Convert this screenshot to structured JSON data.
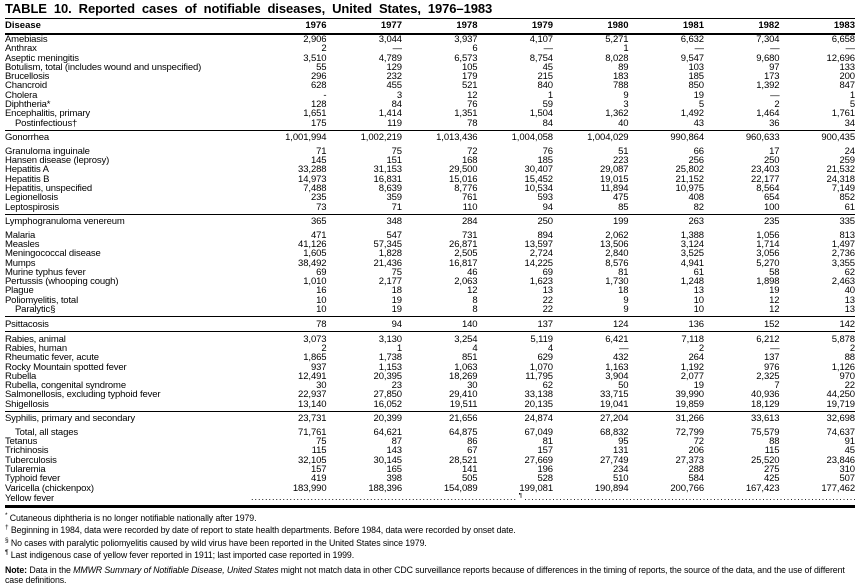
{
  "title": "TABLE 10. Reported cases of notifiable diseases, United States, 1976–1983",
  "columns": [
    "Disease",
    "1976",
    "1977",
    "1978",
    "1979",
    "1980",
    "1981",
    "1982",
    "1983"
  ],
  "leader": {
    "dot": ".",
    "mark": "¶"
  },
  "groups": [
    [
      {
        "label": "Amebiasis",
        "values": [
          "2,906",
          "3,044",
          "3,937",
          "4,107",
          "5,271",
          "6,632",
          "7,304",
          "6,658"
        ]
      },
      {
        "label": "Anthrax",
        "values": [
          "2",
          "—",
          "6",
          "—",
          "1",
          "—",
          "—",
          "—"
        ]
      },
      {
        "label": "Aseptic meningitis",
        "values": [
          "3,510",
          "4,789",
          "6,573",
          "8,754",
          "8,028",
          "9,547",
          "9,680",
          "12,696"
        ]
      },
      {
        "label": "Botulism, total (includes wound and unspecified)",
        "values": [
          "55",
          "129",
          "105",
          "45",
          "89",
          "103",
          "97",
          "133"
        ]
      },
      {
        "label": "Brucellosis",
        "values": [
          "296",
          "232",
          "179",
          "215",
          "183",
          "185",
          "173",
          "200"
        ]
      },
      {
        "label": "Chancroid",
        "values": [
          "628",
          "455",
          "521",
          "840",
          "788",
          "850",
          "1,392",
          "847"
        ]
      },
      {
        "label": "Cholera",
        "values": [
          "-",
          "3",
          "12",
          "1",
          "9",
          "19",
          "—",
          "1"
        ]
      },
      {
        "label": "Diphtheria*",
        "values": [
          "128",
          "84",
          "76",
          "59",
          "3",
          "5",
          "2",
          "5"
        ]
      },
      {
        "label": "Encephalitis, primary",
        "values": [
          "1,651",
          "1,414",
          "1,351",
          "1,504",
          "1,362",
          "1,492",
          "1,464",
          "1,761"
        ]
      },
      {
        "label": "Postinfectious†",
        "indent": true,
        "values": [
          "175",
          "119",
          "78",
          "84",
          "40",
          "43",
          "36",
          "34"
        ]
      }
    ],
    [
      {
        "label": "Gonorrhea",
        "gap_after": true,
        "values": [
          "1,001,994",
          "1,002,219",
          "1,013,436",
          "1,004,058",
          "1,004,029",
          "990,864",
          "960,633",
          "900,435"
        ]
      },
      {
        "label": "Granuloma inguinale",
        "values": [
          "71",
          "75",
          "72",
          "76",
          "51",
          "66",
          "17",
          "24"
        ]
      },
      {
        "label": "Hansen disease (leprosy)",
        "values": [
          "145",
          "151",
          "168",
          "185",
          "223",
          "256",
          "250",
          "259"
        ]
      },
      {
        "label": "Hepatitis A",
        "values": [
          "33,288",
          "31,153",
          "29,500",
          "30,407",
          "29,087",
          "25,802",
          "23,403",
          "21,532"
        ]
      },
      {
        "label": "Hepatitis B",
        "values": [
          "14,973",
          "16,831",
          "15,016",
          "15,452",
          "19,015",
          "21,152",
          "22,177",
          "24,318"
        ]
      },
      {
        "label": "Hepatitis, unspecified",
        "values": [
          "7,488",
          "8,639",
          "8,776",
          "10,534",
          "11,894",
          "10,975",
          "8,564",
          "7,149"
        ]
      },
      {
        "label": "Legionellosis",
        "values": [
          "235",
          "359",
          "761",
          "593",
          "475",
          "408",
          "654",
          "852"
        ]
      },
      {
        "label": "Leptospirosis",
        "values": [
          "73",
          "71",
          "110",
          "94",
          "85",
          "82",
          "100",
          "61"
        ]
      }
    ],
    [
      {
        "label": "Lymphogranuloma venereum",
        "gap_after": true,
        "values": [
          "365",
          "348",
          "284",
          "250",
          "199",
          "263",
          "235",
          "335"
        ]
      },
      {
        "label": "Malaria",
        "values": [
          "471",
          "547",
          "731",
          "894",
          "2,062",
          "1,388",
          "1,056",
          "813"
        ]
      },
      {
        "label": "Measles",
        "values": [
          "41,126",
          "57,345",
          "26,871",
          "13,597",
          "13,506",
          "3,124",
          "1,714",
          "1,497"
        ]
      },
      {
        "label": "Meningococcal disease",
        "values": [
          "1,605",
          "1,828",
          "2,505",
          "2,724",
          "2,840",
          "3,525",
          "3,056",
          "2,736"
        ]
      },
      {
        "label": "Mumps",
        "values": [
          "38,492",
          "21,436",
          "16,817",
          "14,225",
          "8,576",
          "4,941",
          "5,270",
          "3,355"
        ]
      },
      {
        "label": "Murine typhus fever",
        "values": [
          "69",
          "75",
          "46",
          "69",
          "81",
          "61",
          "58",
          "62"
        ]
      },
      {
        "label": "Pertussis (whooping cough)",
        "values": [
          "1,010",
          "2,177",
          "2,063",
          "1,623",
          "1,730",
          "1,248",
          "1,898",
          "2,463"
        ]
      },
      {
        "label": "Plague",
        "values": [
          "16",
          "18",
          "12",
          "13",
          "18",
          "13",
          "19",
          "40"
        ]
      },
      {
        "label": "Poliomyelitis, total",
        "values": [
          "10",
          "19",
          "8",
          "22",
          "9",
          "10",
          "12",
          "13"
        ]
      },
      {
        "label": "Paralytic§",
        "indent": true,
        "values": [
          "10",
          "19",
          "8",
          "22",
          "9",
          "10",
          "12",
          "13"
        ]
      }
    ],
    [
      {
        "label": "Psittacosis",
        "values": [
          "78",
          "94",
          "140",
          "137",
          "124",
          "136",
          "152",
          "142"
        ]
      }
    ],
    [
      {
        "label": "Rabies, animal",
        "values": [
          "3,073",
          "3,130",
          "3,254",
          "5,119",
          "6,421",
          "7,118",
          "6,212",
          "5,878"
        ]
      },
      {
        "label": "Rabies, human",
        "values": [
          "2",
          "1",
          "4",
          "4",
          "—",
          "2",
          "—",
          "2"
        ]
      },
      {
        "label": "Rheumatic fever, acute",
        "values": [
          "1,865",
          "1,738",
          "851",
          "629",
          "432",
          "264",
          "137",
          "88"
        ]
      },
      {
        "label": "Rocky Mountain spotted fever",
        "values": [
          "937",
          "1,153",
          "1,063",
          "1,070",
          "1,163",
          "1,192",
          "976",
          "1,126"
        ]
      },
      {
        "label": "Rubella",
        "values": [
          "12,491",
          "20,395",
          "18,269",
          "11,795",
          "3,904",
          "2,077",
          "2,325",
          "970"
        ]
      },
      {
        "label": "Rubella, congenital syndrome",
        "values": [
          "30",
          "23",
          "30",
          "62",
          "50",
          "19",
          "7",
          "22"
        ]
      },
      {
        "label": "Salmonellosis, excluding typhoid fever",
        "values": [
          "22,937",
          "27,850",
          "29,410",
          "33,138",
          "33,715",
          "39,990",
          "40,936",
          "44,250"
        ]
      },
      {
        "label": "Shigellosis",
        "values": [
          "13,140",
          "16,052",
          "19,511",
          "20,135",
          "19,041",
          "19,859",
          "18,129",
          "19,719"
        ]
      }
    ],
    [
      {
        "label": "Syphilis, primary and secondary",
        "gap_after": true,
        "values": [
          "23,731",
          "20,399",
          "21,656",
          "24,874",
          "27,204",
          "31,266",
          "33,613",
          "32,698"
        ]
      },
      {
        "label": "Total, all stages",
        "indent": true,
        "values": [
          "71,761",
          "64,621",
          "64,875",
          "67,049",
          "68,832",
          "72,799",
          "75,579",
          "74,637"
        ]
      },
      {
        "label": "Tetanus",
        "values": [
          "75",
          "87",
          "86",
          "81",
          "95",
          "72",
          "88",
          "91"
        ]
      },
      {
        "label": "Trichinosis",
        "values": [
          "115",
          "143",
          "67",
          "157",
          "131",
          "206",
          "115",
          "45"
        ]
      },
      {
        "label": "Tuberculosis",
        "values": [
          "32,105",
          "30,145",
          "28,521",
          "27,669",
          "27,749",
          "27,373",
          "25,520",
          "23,846"
        ]
      },
      {
        "label": "Tularemia",
        "values": [
          "157",
          "165",
          "141",
          "196",
          "234",
          "288",
          "275",
          "310"
        ]
      },
      {
        "label": "Typhoid fever",
        "values": [
          "419",
          "398",
          "505",
          "528",
          "510",
          "584",
          "425",
          "507"
        ]
      },
      {
        "label": "Varicella (chickenpox)",
        "values": [
          "183,990",
          "188,396",
          "154,089",
          "199,081",
          "190,894",
          "200,766",
          "167,423",
          "177,462"
        ]
      },
      {
        "label": "Yellow fever",
        "leader": true
      }
    ]
  ],
  "footnotes": [
    {
      "mark": "*",
      "text": "Cutaneous diphtheria is no longer notifiable nationally after 1979."
    },
    {
      "mark": "†",
      "text": "Beginning in 1984, data were recorded by date of report to state health departments. Before 1984, data were recorded by onset date."
    },
    {
      "mark": "§",
      "text": "No cases with paralytic poliomyelitis caused by wild virus have been reported in the United States since 1979."
    },
    {
      "mark": "¶",
      "text": "Last indigenous case of yellow fever reported in 1911; last imported case reported in 1999."
    }
  ],
  "note": {
    "label": "Note:",
    "pre": " Data in the ",
    "italic": "MMWR Summary of Notifiable Disease, United States",
    "post": " might not match data in other CDC surveillance reports because of differences in the timing of reports, the source of the data, and the use of different case definitions."
  }
}
